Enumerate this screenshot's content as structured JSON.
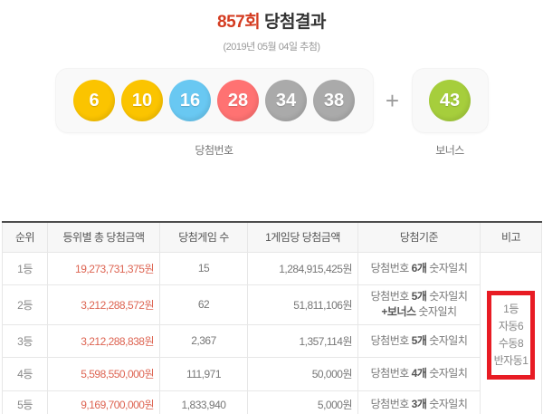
{
  "header": {
    "round": "857회",
    "title": "당첨결과",
    "draw_date": "(2019년 05월 04일 추첨)"
  },
  "colors": {
    "title_accent": "#d43c21",
    "money_red": "#dd6452",
    "annotation_box_red": "#e81c24",
    "ball_yellow": "#fbc400",
    "ball_blue": "#69c8f2",
    "ball_red": "#ff7272",
    "ball_gray": "#aaaaaa",
    "ball_green": "#a6ce3c"
  },
  "draw": {
    "winning_label": "당첨번호",
    "bonus_label": "보너스",
    "plus": "+",
    "balls": [
      {
        "n": "6",
        "color": "#fbc400"
      },
      {
        "n": "10",
        "color": "#fbc400"
      },
      {
        "n": "16",
        "color": "#69c8f2"
      },
      {
        "n": "28",
        "color": "#ff7272"
      },
      {
        "n": "34",
        "color": "#aaaaaa"
      },
      {
        "n": "38",
        "color": "#aaaaaa"
      }
    ],
    "bonus_ball": {
      "n": "43",
      "color": "#a6ce3c"
    }
  },
  "table": {
    "headers": [
      "순위",
      "등위별 총 당첨금액",
      "당첨게임 수",
      "1게임당 당첨금액",
      "당첨기준",
      "비고"
    ],
    "rows": [
      {
        "rank": "1등",
        "total": "19,273,731,375원",
        "games": "15",
        "per_game": "1,284,915,425원",
        "c_pre": "당첨번호 ",
        "c_bold": "6개",
        "c_post": " 숫자일치",
        "c2_bold": "",
        "c2_post": ""
      },
      {
        "rank": "2등",
        "total": "3,212,288,572원",
        "games": "62",
        "per_game": "51,811,106원",
        "c_pre": "당첨번호 ",
        "c_bold": "5개",
        "c_post": " 숫자일치",
        "c2_bold": "+보너스",
        "c2_post": " 숫자일치"
      },
      {
        "rank": "3등",
        "total": "3,212,288,838원",
        "games": "2,367",
        "per_game": "1,357,114원",
        "c_pre": "당첨번호 ",
        "c_bold": "5개",
        "c_post": " 숫자일치",
        "c2_bold": "",
        "c2_post": ""
      },
      {
        "rank": "4등",
        "total": "5,598,550,000원",
        "games": "111,971",
        "per_game": "50,000원",
        "c_pre": "당첨번호 ",
        "c_bold": "4개",
        "c_post": " 숫자일치",
        "c2_bold": "",
        "c2_post": ""
      },
      {
        "rank": "5등",
        "total": "9,169,700,000원",
        "games": "1,833,940",
        "per_game": "5,000원",
        "c_pre": "당첨번호 ",
        "c_bold": "3개",
        "c_post": " 숫자일치",
        "c2_bold": "",
        "c2_post": ""
      }
    ],
    "remark": {
      "lines": [
        "1등",
        "자동6",
        "수동8",
        "반자동1"
      ]
    }
  }
}
